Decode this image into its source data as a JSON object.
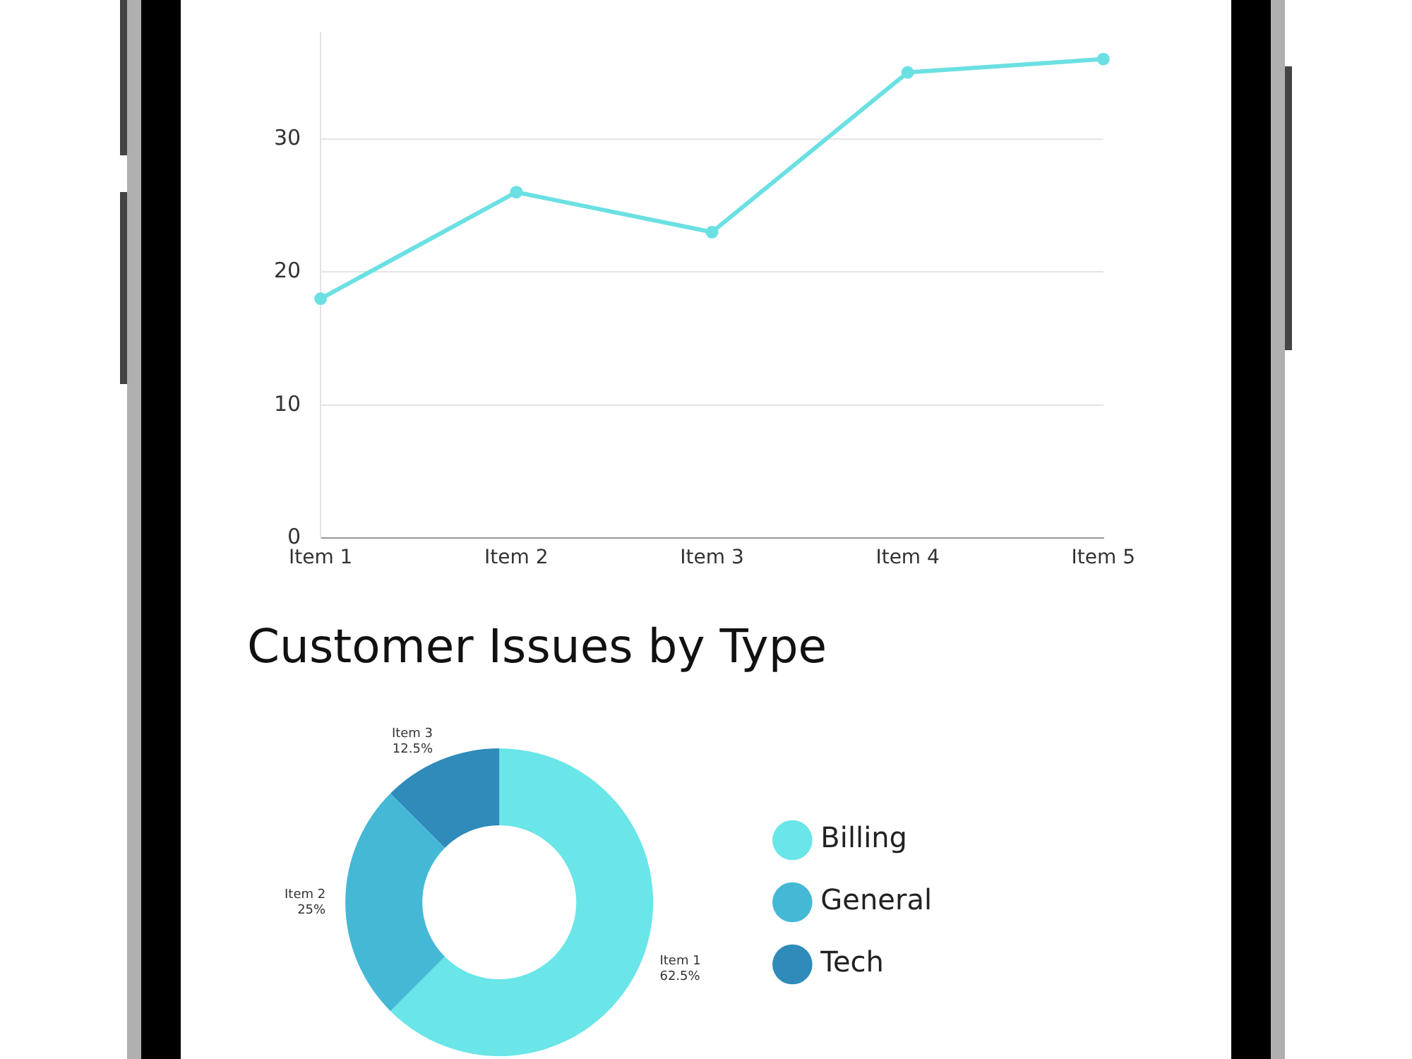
{
  "chart_data": [
    {
      "type": "line",
      "categories": [
        "Item 1",
        "Item 2",
        "Item 3",
        "Item 4",
        "Item 5"
      ],
      "series": [
        {
          "color": "#6be0e3",
          "values": [
            18,
            26,
            23,
            35,
            36
          ]
        }
      ],
      "ylim": [
        0,
        38
      ],
      "yticks": [
        0,
        10,
        20,
        30
      ],
      "grid": "y",
      "legend": false,
      "marker": "circle"
    },
    {
      "type": "donut",
      "title": "Customer Issues by Type",
      "categories": [
        "Billing",
        "General",
        "Tech"
      ],
      "values": [
        62.5,
        25,
        12.5
      ],
      "colors": [
        "#6ae5e8",
        "#45b8d6",
        "#2e8bba"
      ],
      "value_labels": [
        "Item 1\n62.5%",
        "Item 2\n25%",
        "Item 3\n12.5%"
      ],
      "legend": "right"
    }
  ]
}
